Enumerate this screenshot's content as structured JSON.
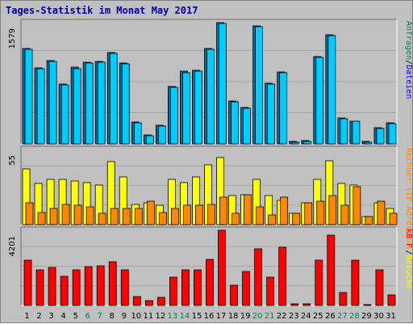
{
  "title": "Tages-Statistik im Monat May 2017",
  "colors": {
    "background": "#c0c0c0",
    "panel": "#c0c0c0",
    "grid": "#a8a8a8",
    "title": "#0000a0",
    "files": "#00ccff",
    "pages": "#ffff00",
    "hosts": "#ff8800",
    "kbytes": "#ff0000",
    "weekend_day": "#00805c",
    "weekday": "#000000",
    "label_green": "#00805c",
    "label_blue": "#0000ff",
    "label_black": "#000000",
    "label_orange": "#ff8800",
    "label_red": "#ff0000"
  },
  "chart_data": [
    {
      "type": "bar",
      "panel": "top",
      "ylabel_value": "1579",
      "ylim": [
        0,
        1579
      ],
      "right_label": [
        {
          "text": "Anfragen",
          "color": "#00805c"
        },
        {
          "text": "/",
          "color": "#000000"
        },
        {
          "text": "Dateien",
          "color": "#0000ff"
        }
      ],
      "categories": [
        "1",
        "2",
        "3",
        "4",
        "5",
        "6",
        "7",
        "8",
        "9",
        "10",
        "11",
        "12",
        "13",
        "14",
        "15",
        "16",
        "17",
        "18",
        "19",
        "20",
        "21",
        "22",
        "23",
        "24",
        "25",
        "26",
        "27",
        "28",
        "29",
        "30",
        "31"
      ],
      "series": [
        {
          "name": "Anfragen",
          "values": [
            1240,
            990,
            1080,
            780,
            1000,
            1060,
            1070,
            1190,
            1050,
            280,
            120,
            240,
            750,
            950,
            960,
            1240,
            1580,
            560,
            470,
            1540,
            790,
            940,
            30,
            40,
            1140,
            1420,
            340,
            300,
            30,
            210,
            270
          ]
        },
        {
          "name": "Dateien",
          "values": [
            1230,
            980,
            1070,
            770,
            980,
            1050,
            1060,
            1180,
            1040,
            270,
            110,
            230,
            740,
            930,
            950,
            1230,
            1570,
            550,
            460,
            1530,
            780,
            930,
            20,
            30,
            1130,
            1410,
            330,
            290,
            20,
            200,
            260
          ]
        }
      ]
    },
    {
      "type": "bar",
      "panel": "middle",
      "ylabel_value": "55",
      "ylim": [
        0,
        55
      ],
      "right_label": [
        {
          "text": "Rechner (IP-Adressen)",
          "color": "#ff8800"
        },
        {
          "text": "/",
          "color": "#000000"
        },
        {
          "text": "Besuche",
          "color": "#ffff00"
        }
      ],
      "categories": [
        "1",
        "2",
        "3",
        "4",
        "5",
        "6",
        "7",
        "8",
        "9",
        "10",
        "11",
        "12",
        "13",
        "14",
        "15",
        "16",
        "17",
        "18",
        "19",
        "20",
        "21",
        "22",
        "23",
        "24",
        "25",
        "26",
        "27",
        "28",
        "29",
        "30",
        "31"
      ],
      "series": [
        {
          "name": "Besuche",
          "values": [
            41,
            30,
            33,
            33,
            32,
            31,
            29,
            46,
            35,
            15,
            16,
            14,
            33,
            31,
            35,
            44,
            49,
            21,
            22,
            33,
            21,
            18,
            8,
            16,
            33,
            47,
            30,
            29,
            6,
            16,
            12
          ]
        },
        {
          "name": "Rechner (IP-Adressen)",
          "values": [
            16,
            9,
            12,
            15,
            14,
            13,
            8,
            12,
            12,
            12,
            17,
            9,
            12,
            14,
            14,
            15,
            20,
            8,
            22,
            13,
            7,
            20,
            8,
            16,
            17,
            21,
            14,
            28,
            6,
            17,
            8
          ]
        }
      ]
    },
    {
      "type": "bar",
      "panel": "bottom",
      "ylabel_value": "4201",
      "ylim": [
        0,
        4201
      ],
      "right_label": [
        {
          "text": "kB F",
          "color": "#ff0000"
        }
      ],
      "categories": [
        "1",
        "2",
        "3",
        "4",
        "5",
        "6",
        "7",
        "8",
        "9",
        "10",
        "11",
        "12",
        "13",
        "14",
        "15",
        "16",
        "17",
        "18",
        "19",
        "20",
        "21",
        "22",
        "23",
        "24",
        "25",
        "26",
        "27",
        "28",
        "29",
        "30",
        "31"
      ],
      "series": [
        {
          "name": "kB F",
          "values": [
            2520,
            2000,
            2140,
            1620,
            2010,
            2180,
            2230,
            2450,
            2010,
            480,
            250,
            440,
            1600,
            1980,
            2010,
            2570,
            4210,
            1150,
            1890,
            3140,
            1580,
            3240,
            100,
            100,
            2530,
            3950,
            730,
            2530,
            60,
            2010,
            580
          ]
        }
      ]
    }
  ],
  "x_labels": [
    "1",
    "2",
    "3",
    "4",
    "5",
    "6",
    "7",
    "8",
    "9",
    "10",
    "11",
    "12",
    "13",
    "14",
    "15",
    "16",
    "17",
    "18",
    "19",
    "20",
    "21",
    "22",
    "23",
    "24",
    "25",
    "26",
    "27",
    "28",
    "29",
    "30",
    "31"
  ],
  "weekend_days": [
    6,
    7,
    13,
    14,
    20,
    21,
    27,
    28
  ]
}
